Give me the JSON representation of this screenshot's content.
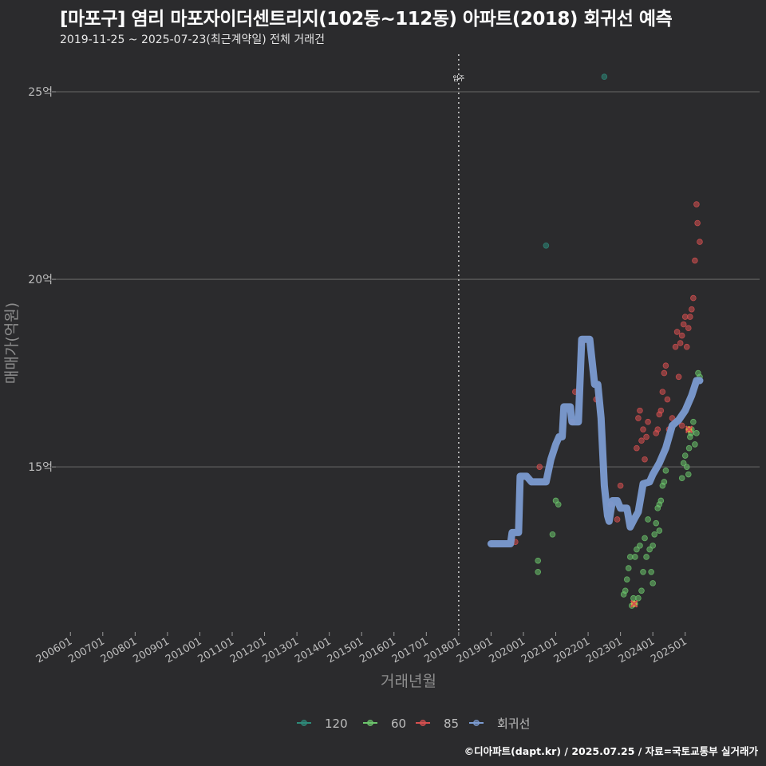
{
  "chart_data": {
    "type": "scatter",
    "title": "[마포구] 염리 마포자이더센트리지(102동~112동) 아파트(2018) 회귀선 예측",
    "subtitle": "2019-11-25 ~ 2025-07-23(최근계약일) 전체 거래건",
    "xlabel": "거래년월",
    "ylabel": "매매가(억원)",
    "footer": "©디아파트(dapt.kr) / 2025.07.25 / 자료=국토교통부 실거래가",
    "xlim": [
      2005.55,
      2027.3
    ],
    "ylim": [
      10.6,
      26.0
    ],
    "yticks": [
      {
        "value": 15,
        "label": "15억"
      },
      {
        "value": 20,
        "label": "20억"
      },
      {
        "value": 25,
        "label": "25억"
      }
    ],
    "xticks": [
      {
        "value": 2006.0,
        "label": "200601"
      },
      {
        "value": 2007.0,
        "label": "200701"
      },
      {
        "value": 2008.0,
        "label": "200801"
      },
      {
        "value": 2009.0,
        "label": "200901"
      },
      {
        "value": 2010.0,
        "label": "201001"
      },
      {
        "value": 2011.0,
        "label": "201101"
      },
      {
        "value": 2012.0,
        "label": "201201"
      },
      {
        "value": 2013.0,
        "label": "201301"
      },
      {
        "value": 2014.0,
        "label": "201401"
      },
      {
        "value": 2015.0,
        "label": "201501"
      },
      {
        "value": 2016.0,
        "label": "201601"
      },
      {
        "value": 2017.0,
        "label": "201701"
      },
      {
        "value": 2018.0,
        "label": "201801"
      },
      {
        "value": 2019.0,
        "label": "201901"
      },
      {
        "value": 2020.0,
        "label": "202001"
      },
      {
        "value": 2021.0,
        "label": "202101"
      },
      {
        "value": 2022.0,
        "label": "202201"
      },
      {
        "value": 2023.0,
        "label": "202301"
      },
      {
        "value": 2024.0,
        "label": "202401"
      },
      {
        "value": 2025.0,
        "label": "202501"
      }
    ],
    "annotations": [
      {
        "x": 2018.0,
        "label": "입주"
      }
    ],
    "series": [
      {
        "name": "120",
        "color": "#2e8b7a",
        "points": [
          [
            2020.7,
            20.9
          ],
          [
            2022.5,
            25.4
          ]
        ]
      },
      {
        "name": "60",
        "color": "#6cc46c",
        "points": [
          [
            2020.45,
            12.5
          ],
          [
            2020.45,
            12.2
          ],
          [
            2020.9,
            13.2
          ],
          [
            2021.0,
            14.1
          ],
          [
            2021.08,
            14.0
          ],
          [
            2023.1,
            11.6
          ],
          [
            2023.15,
            11.7
          ],
          [
            2023.2,
            12.0
          ],
          [
            2023.25,
            12.3
          ],
          [
            2023.3,
            12.6
          ],
          [
            2023.35,
            11.3
          ],
          [
            2023.4,
            11.5
          ],
          [
            2023.45,
            12.6
          ],
          [
            2023.5,
            12.8
          ],
          [
            2023.55,
            11.5
          ],
          [
            2023.6,
            12.9
          ],
          [
            2023.65,
            11.7
          ],
          [
            2023.7,
            12.2
          ],
          [
            2023.75,
            13.1
          ],
          [
            2023.8,
            12.6
          ],
          [
            2023.85,
            13.6
          ],
          [
            2023.9,
            12.8
          ],
          [
            2023.95,
            12.2
          ],
          [
            2024.0,
            12.9
          ],
          [
            2024.05,
            13.2
          ],
          [
            2024.1,
            13.5
          ],
          [
            2024.15,
            13.9
          ],
          [
            2024.2,
            14.0
          ],
          [
            2024.25,
            14.1
          ],
          [
            2024.3,
            14.5
          ],
          [
            2024.35,
            14.6
          ],
          [
            2024.4,
            14.9
          ],
          [
            2024.9,
            14.7
          ],
          [
            2024.95,
            15.1
          ],
          [
            2025.0,
            15.3
          ],
          [
            2025.05,
            15.0
          ],
          [
            2025.1,
            14.8
          ],
          [
            2025.12,
            15.5
          ],
          [
            2025.15,
            15.8
          ],
          [
            2025.18,
            15.9
          ],
          [
            2025.2,
            16.0
          ],
          [
            2025.25,
            16.2
          ],
          [
            2025.3,
            15.6
          ],
          [
            2025.35,
            15.9
          ],
          [
            2025.4,
            17.5
          ],
          [
            2025.45,
            17.4
          ],
          [
            2023.45,
            11.35
          ],
          [
            2024.0,
            11.9
          ],
          [
            2024.2,
            13.3
          ]
        ]
      },
      {
        "name": "85",
        "color": "#d75050",
        "points": [
          [
            2019.75,
            13.0
          ],
          [
            2020.5,
            15.0
          ],
          [
            2021.5,
            16.2
          ],
          [
            2021.6,
            17.0
          ],
          [
            2021.8,
            18.3
          ],
          [
            2022.25,
            16.8
          ],
          [
            2022.7,
            14.0
          ],
          [
            2022.9,
            13.6
          ],
          [
            2023.0,
            14.5
          ],
          [
            2023.5,
            15.5
          ],
          [
            2023.55,
            16.3
          ],
          [
            2023.6,
            16.5
          ],
          [
            2023.65,
            15.7
          ],
          [
            2023.7,
            16.0
          ],
          [
            2023.75,
            15.2
          ],
          [
            2023.8,
            15.8
          ],
          [
            2023.85,
            16.2
          ],
          [
            2024.1,
            15.9
          ],
          [
            2024.15,
            16.0
          ],
          [
            2024.2,
            16.4
          ],
          [
            2024.25,
            16.5
          ],
          [
            2024.3,
            17.0
          ],
          [
            2024.35,
            17.5
          ],
          [
            2024.4,
            17.7
          ],
          [
            2024.45,
            16.8
          ],
          [
            2024.5,
            16.0
          ],
          [
            2024.6,
            16.3
          ],
          [
            2024.7,
            18.2
          ],
          [
            2024.75,
            18.6
          ],
          [
            2024.8,
            17.4
          ],
          [
            2024.85,
            18.3
          ],
          [
            2024.9,
            18.5
          ],
          [
            2024.95,
            18.8
          ],
          [
            2025.0,
            19.0
          ],
          [
            2025.05,
            18.2
          ],
          [
            2025.1,
            18.7
          ],
          [
            2025.15,
            19.0
          ],
          [
            2025.2,
            19.2
          ],
          [
            2025.25,
            19.5
          ],
          [
            2025.3,
            20.5
          ],
          [
            2025.35,
            22.0
          ],
          [
            2025.38,
            21.5
          ],
          [
            2025.45,
            21.0
          ],
          [
            2024.9,
            16.1
          ],
          [
            2025.1,
            16.0
          ]
        ]
      },
      {
        "name": "회귀선",
        "color": "#7b9bd1",
        "type": "line",
        "points": [
          [
            2019.0,
            12.95
          ],
          [
            2019.4,
            12.95
          ],
          [
            2019.6,
            12.95
          ],
          [
            2019.65,
            13.25
          ],
          [
            2019.85,
            13.25
          ],
          [
            2019.9,
            14.75
          ],
          [
            2020.1,
            14.75
          ],
          [
            2020.25,
            14.6
          ],
          [
            2020.7,
            14.6
          ],
          [
            2020.85,
            15.2
          ],
          [
            2021.0,
            15.6
          ],
          [
            2021.1,
            15.8
          ],
          [
            2021.2,
            15.8
          ],
          [
            2021.25,
            16.6
          ],
          [
            2021.45,
            16.6
          ],
          [
            2021.5,
            16.2
          ],
          [
            2021.7,
            16.2
          ],
          [
            2021.8,
            18.4
          ],
          [
            2022.05,
            18.4
          ],
          [
            2022.2,
            17.2
          ],
          [
            2022.3,
            17.2
          ],
          [
            2022.4,
            16.3
          ],
          [
            2022.5,
            14.5
          ],
          [
            2022.6,
            13.7
          ],
          [
            2022.65,
            13.55
          ],
          [
            2022.75,
            14.1
          ],
          [
            2022.9,
            14.1
          ],
          [
            2023.0,
            13.9
          ],
          [
            2023.2,
            13.9
          ],
          [
            2023.3,
            13.4
          ],
          [
            2023.45,
            13.65
          ],
          [
            2023.55,
            13.8
          ],
          [
            2023.7,
            14.55
          ],
          [
            2023.9,
            14.6
          ],
          [
            2024.0,
            14.8
          ],
          [
            2024.2,
            15.1
          ],
          [
            2024.4,
            15.5
          ],
          [
            2024.6,
            16.1
          ],
          [
            2024.8,
            16.25
          ],
          [
            2025.0,
            16.5
          ],
          [
            2025.2,
            16.9
          ],
          [
            2025.35,
            17.3
          ],
          [
            2025.45,
            17.3
          ]
        ]
      }
    ],
    "highlights": [
      {
        "x": 2023.42,
        "y": 11.35,
        "color": "#d75050"
      },
      {
        "x": 2025.12,
        "y": 16.0,
        "color": "#d75050"
      }
    ]
  }
}
